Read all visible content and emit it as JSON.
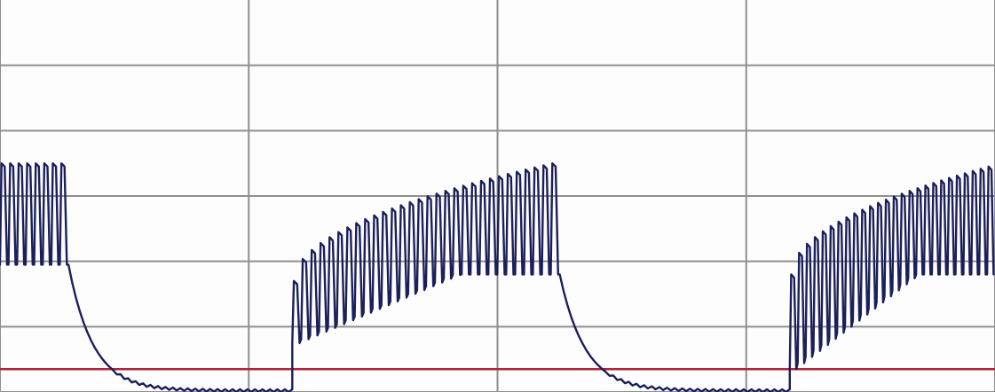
{
  "chart_data": {
    "type": "line",
    "title": "",
    "xlabel": "",
    "ylabel": "",
    "grid": true,
    "x_gridlines": [
      0,
      2,
      4,
      6,
      8
    ],
    "y_gridlines": [
      0,
      1,
      2,
      3,
      4,
      5
    ],
    "xlim": [
      0,
      8
    ],
    "ylim": [
      0,
      6
    ],
    "colors": {
      "trace": "#1b1f5a",
      "baseline": "#b0243d",
      "grid": "#8f8f8f",
      "background": "#fdfdfd"
    },
    "baseline": {
      "y": 0.35
    },
    "series": [
      {
        "segments": [
          {
            "kind": "pulses",
            "x_start": 0.0,
            "x_end": 0.55,
            "count": 8,
            "low": 1.95,
            "high_start": 3.5,
            "high_end": 3.5
          },
          {
            "kind": "decay",
            "x_start": 0.55,
            "x_end": 2.35,
            "from": 1.95,
            "to": 0.02
          },
          {
            "kind": "pulses",
            "x_start": 2.35,
            "x_end": 4.5,
            "count": 30,
            "low": 0.75,
            "low_end": 1.8,
            "high_start": 1.7,
            "high_end": 3.5
          },
          {
            "kind": "decay",
            "x_start": 4.5,
            "x_end": 6.35,
            "from": 1.8,
            "to": 0.02
          },
          {
            "kind": "pulses",
            "x_start": 6.35,
            "x_end": 8.0,
            "count": 26,
            "low": 0.35,
            "low_end": 1.8,
            "high_start": 1.8,
            "high_end": 3.45
          }
        ]
      }
    ]
  }
}
